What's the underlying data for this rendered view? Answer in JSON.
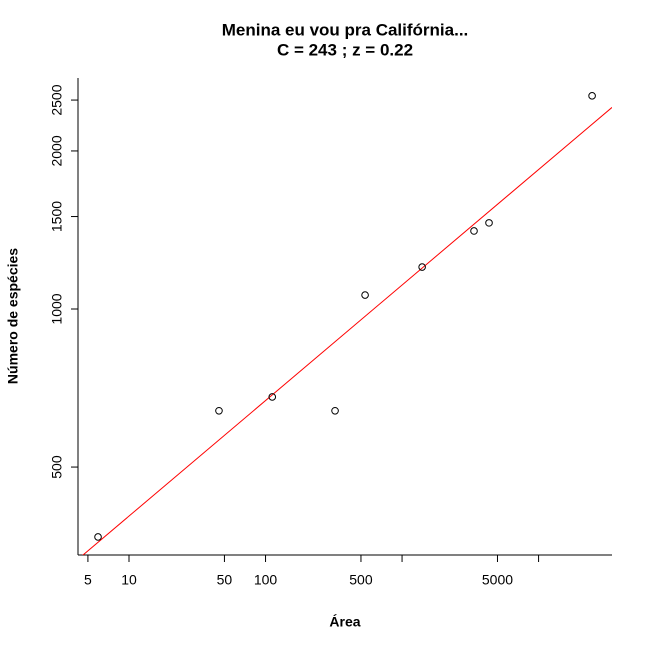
{
  "chart_data": {
    "type": "scatter",
    "title": "Menina eu vou pra Califórnia...",
    "subtitle": "C =  243 ; z =  0.22",
    "xlabel": "Área",
    "ylabel": "Número de espécies",
    "xlog": true,
    "ylog": true,
    "x": [
      5.93,
      45.6,
      112,
      323,
      536,
      1403,
      3365,
      4335,
      24660
    ],
    "values": [
      368,
      640,
      680,
      640,
      1063,
      1202,
      1408,
      1459,
      2547
    ],
    "color": "#000000",
    "fit": {
      "C": 243,
      "z": 0.22,
      "color": "#ff0000"
    },
    "xlim": [
      4.23,
      34500
    ],
    "ylim": [
      340,
      2754
    ],
    "xticks": [
      5,
      10,
      50,
      100,
      500,
      5000
    ],
    "xticks_unlabeled": [
      1000,
      10000
    ],
    "yticks": [
      500,
      1000,
      1500,
      2000,
      2500
    ]
  }
}
